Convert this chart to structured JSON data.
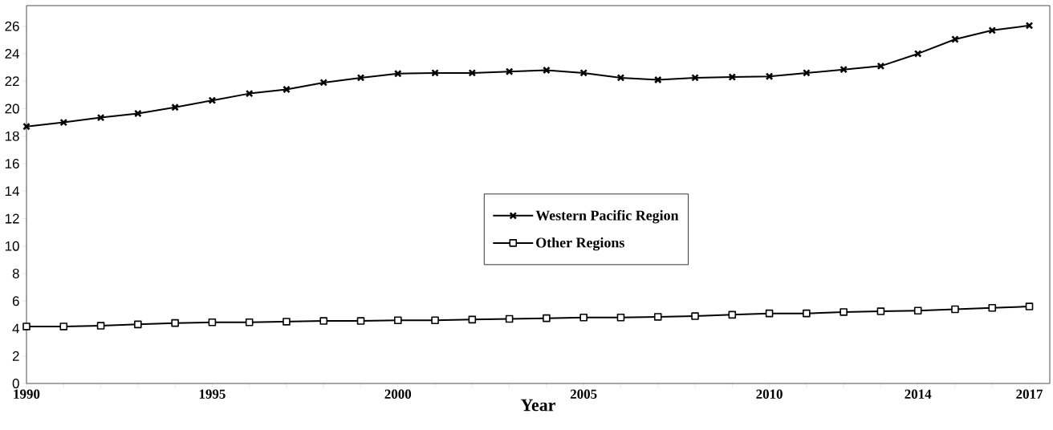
{
  "chart_data": {
    "type": "line",
    "xlabel": "Year",
    "x": [
      1990,
      1991,
      1992,
      1993,
      1994,
      1995,
      1996,
      1997,
      1998,
      1999,
      2000,
      2001,
      2002,
      2003,
      2004,
      2005,
      2006,
      2007,
      2008,
      2009,
      2010,
      2011,
      2012,
      2013,
      2014,
      2015,
      2016,
      2017
    ],
    "series": [
      {
        "name": "Western Pacific Region",
        "color": "#000000",
        "marker": "cross",
        "values": [
          18.7,
          19.0,
          19.35,
          19.65,
          20.1,
          20.6,
          21.1,
          21.4,
          21.9,
          22.25,
          22.55,
          22.6,
          22.6,
          22.7,
          22.8,
          22.6,
          22.25,
          22.1,
          22.25,
          22.3,
          22.35,
          22.6,
          22.85,
          23.1,
          24.0,
          25.05,
          25.7,
          26.05
        ]
      },
      {
        "name": "Other Regions",
        "color": "#000000",
        "marker": "square",
        "values": [
          4.15,
          4.15,
          4.2,
          4.3,
          4.4,
          4.45,
          4.45,
          4.5,
          4.55,
          4.55,
          4.6,
          4.6,
          4.65,
          4.7,
          4.75,
          4.8,
          4.8,
          4.85,
          4.9,
          5.0,
          5.1,
          5.1,
          5.2,
          5.25,
          5.3,
          5.4,
          5.5,
          5.6
        ]
      }
    ],
    "xlim": [
      1990,
      2017.55
    ],
    "ylim": [
      0,
      27.5
    ],
    "xticks": [
      1990,
      {
        "value": 1991,
        "label": null
      },
      {
        "value": 1992,
        "label": null
      },
      {
        "value": 1993,
        "label": null
      },
      {
        "value": 1994,
        "label": null
      },
      1995,
      {
        "value": 1996,
        "label": null
      },
      {
        "value": 1997,
        "label": null
      },
      {
        "value": 1998,
        "label": null
      },
      {
        "value": 1999,
        "label": null
      },
      2000,
      {
        "value": 2001,
        "label": null
      },
      {
        "value": 2002,
        "label": null
      },
      {
        "value": 2003,
        "label": null
      },
      {
        "value": 2004,
        "label": null
      },
      2005,
      {
        "value": 2006,
        "label": null
      },
      {
        "value": 2007,
        "label": null
      },
      {
        "value": 2008,
        "label": null
      },
      {
        "value": 2009,
        "label": null
      },
      2010,
      {
        "value": 2011,
        "label": null
      },
      {
        "value": 2012,
        "label": null
      },
      {
        "value": 2013,
        "label": null
      },
      2014,
      {
        "value": 2015,
        "label": null
      },
      {
        "value": 2016,
        "label": null
      },
      2017
    ],
    "yticks": [
      0,
      2,
      4,
      6,
      8,
      10,
      12,
      14,
      16,
      18,
      20,
      22,
      24,
      26
    ],
    "legend": "center",
    "grid": false,
    "line_style": "solid"
  }
}
